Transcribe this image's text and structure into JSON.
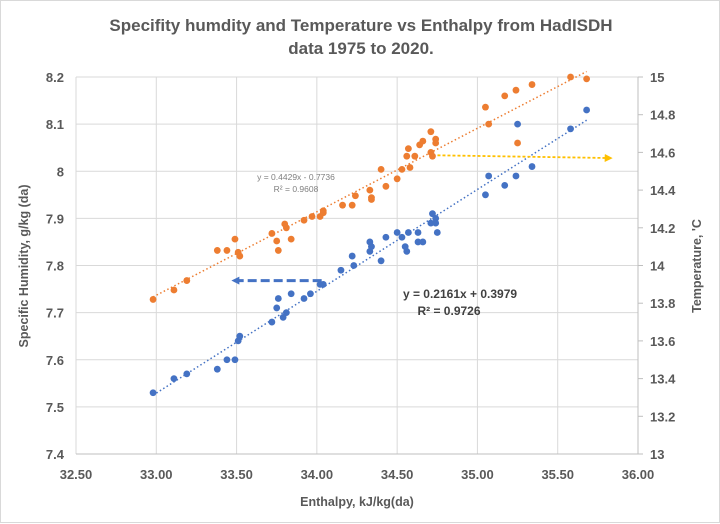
{
  "chart_data": {
    "type": "scatter",
    "title_lines": [
      "Specifity humdity and Temperature vs Enthalpy from HadISDH",
      "data 1975 to 2020."
    ],
    "xlabel": "Enthalpy,  kJ/kg(da)",
    "ylabel_left": "Specific Humidity,  g/kg (da)",
    "ylabel_right": "Temperature, 'C",
    "xlim": [
      32.5,
      36.0
    ],
    "ylim_left": [
      7.4,
      8.2
    ],
    "ylim_right": [
      13,
      15
    ],
    "x_ticks": [
      "32.50",
      "33.00",
      "33.50",
      "34.00",
      "34.50",
      "35.00",
      "35.50",
      "36.00"
    ],
    "x_tick_values": [
      32.5,
      33.0,
      33.5,
      34.0,
      34.5,
      35.0,
      35.5,
      36.0
    ],
    "y_left_ticks": [
      "7.4",
      "7.5",
      "7.6",
      "7.7",
      "7.8",
      "7.9",
      "8",
      "8.1",
      "8.2"
    ],
    "y_left_tick_values": [
      7.4,
      7.5,
      7.6,
      7.7,
      7.8,
      7.9,
      8.0,
      8.1,
      8.2
    ],
    "y_right_ticks": [
      "13",
      "13.2",
      "13.4",
      "13.6",
      "13.8",
      "14",
      "14.2",
      "14.4",
      "14.6",
      "14.8",
      "15"
    ],
    "y_right_tick_values": [
      13,
      13.2,
      13.4,
      13.6,
      13.8,
      14,
      14.2,
      14.4,
      14.6,
      14.8,
      15
    ],
    "grid": true,
    "series": [
      {
        "name": "Specific Humidity",
        "axis": "left",
        "color": "#4472c4",
        "trendline": {
          "slope": 0.2161,
          "intercept": 0.3979,
          "equation": "y = 0.2161x + 0.3979",
          "r2": "R² = 0.9726",
          "x_range": [
            32.98,
            35.68
          ]
        },
        "points": [
          [
            32.98,
            7.53
          ],
          [
            33.11,
            7.56
          ],
          [
            33.19,
            7.57
          ],
          [
            33.38,
            7.58
          ],
          [
            33.44,
            7.6
          ],
          [
            33.49,
            7.6
          ],
          [
            33.51,
            7.64
          ],
          [
            33.52,
            7.65
          ],
          [
            33.72,
            7.68
          ],
          [
            33.75,
            7.71
          ],
          [
            33.76,
            7.73
          ],
          [
            33.79,
            7.69
          ],
          [
            33.81,
            7.7
          ],
          [
            33.84,
            7.74
          ],
          [
            33.92,
            7.73
          ],
          [
            33.96,
            7.74
          ],
          [
            34.02,
            7.76
          ],
          [
            34.04,
            7.76
          ],
          [
            34.15,
            7.79
          ],
          [
            34.22,
            7.82
          ],
          [
            34.23,
            7.8
          ],
          [
            34.33,
            7.83
          ],
          [
            34.33,
            7.85
          ],
          [
            34.34,
            7.84
          ],
          [
            34.4,
            7.81
          ],
          [
            34.43,
            7.86
          ],
          [
            34.5,
            7.87
          ],
          [
            34.53,
            7.86
          ],
          [
            34.55,
            7.84
          ],
          [
            34.56,
            7.83
          ],
          [
            34.57,
            7.87
          ],
          [
            34.63,
            7.87
          ],
          [
            34.63,
            7.85
          ],
          [
            34.66,
            7.85
          ],
          [
            34.71,
            7.89
          ],
          [
            34.72,
            7.91
          ],
          [
            34.74,
            7.9
          ],
          [
            34.74,
            7.89
          ],
          [
            34.75,
            7.87
          ],
          [
            35.05,
            7.95
          ],
          [
            35.07,
            7.99
          ],
          [
            35.17,
            7.97
          ],
          [
            35.24,
            7.99
          ],
          [
            35.25,
            8.1
          ],
          [
            35.34,
            8.01
          ],
          [
            35.58,
            8.09
          ],
          [
            35.68,
            8.13
          ]
        ]
      },
      {
        "name": "Temperature",
        "axis": "right",
        "color": "#ed7d31",
        "trendline": {
          "slope": 0.4429,
          "intercept": -0.7736,
          "equation": "y = 0.4429x - 0.7736",
          "r2": "R² = 0.9608",
          "x_range": [
            32.98,
            35.68
          ]
        },
        "points": [
          [
            32.98,
            13.82
          ],
          [
            33.11,
            13.87
          ],
          [
            33.19,
            13.92
          ],
          [
            33.38,
            14.08
          ],
          [
            33.44,
            14.08
          ],
          [
            33.49,
            14.14
          ],
          [
            33.51,
            14.07
          ],
          [
            33.52,
            14.05
          ],
          [
            33.72,
            14.17
          ],
          [
            33.75,
            14.13
          ],
          [
            33.76,
            14.08
          ],
          [
            33.8,
            14.22
          ],
          [
            33.81,
            14.2
          ],
          [
            33.84,
            14.14
          ],
          [
            33.92,
            14.24
          ],
          [
            33.97,
            14.26
          ],
          [
            34.02,
            14.26
          ],
          [
            34.04,
            14.28
          ],
          [
            34.04,
            14.29
          ],
          [
            34.16,
            14.32
          ],
          [
            34.22,
            14.32
          ],
          [
            34.24,
            14.37
          ],
          [
            34.33,
            14.4
          ],
          [
            34.34,
            14.36
          ],
          [
            34.34,
            14.35
          ],
          [
            34.4,
            14.51
          ],
          [
            34.43,
            14.42
          ],
          [
            34.5,
            14.46
          ],
          [
            34.53,
            14.51
          ],
          [
            34.58,
            14.52
          ],
          [
            34.56,
            14.58
          ],
          [
            34.57,
            14.62
          ],
          [
            34.61,
            14.58
          ],
          [
            34.64,
            14.64
          ],
          [
            34.66,
            14.66
          ],
          [
            34.71,
            14.71
          ],
          [
            34.71,
            14.6
          ],
          [
            34.72,
            14.58
          ],
          [
            34.74,
            14.67
          ],
          [
            34.74,
            14.65
          ],
          [
            35.05,
            14.84
          ],
          [
            35.07,
            14.75
          ],
          [
            35.17,
            14.9
          ],
          [
            35.24,
            14.93
          ],
          [
            35.25,
            14.65
          ],
          [
            35.34,
            14.96
          ],
          [
            35.58,
            15.0
          ],
          [
            35.68,
            14.99
          ]
        ]
      }
    ],
    "annotations": [
      {
        "type": "arrow",
        "color": "#4472c4",
        "style": "dashed",
        "from": [
          34.03,
          7.768
        ],
        "to": [
          33.48,
          7.768
        ],
        "axis": "left"
      },
      {
        "type": "arrow",
        "color": "#ffc000",
        "style": "dotted",
        "from": [
          34.72,
          14.585
        ],
        "to": [
          35.83,
          14.57
        ],
        "axis": "right"
      }
    ]
  }
}
